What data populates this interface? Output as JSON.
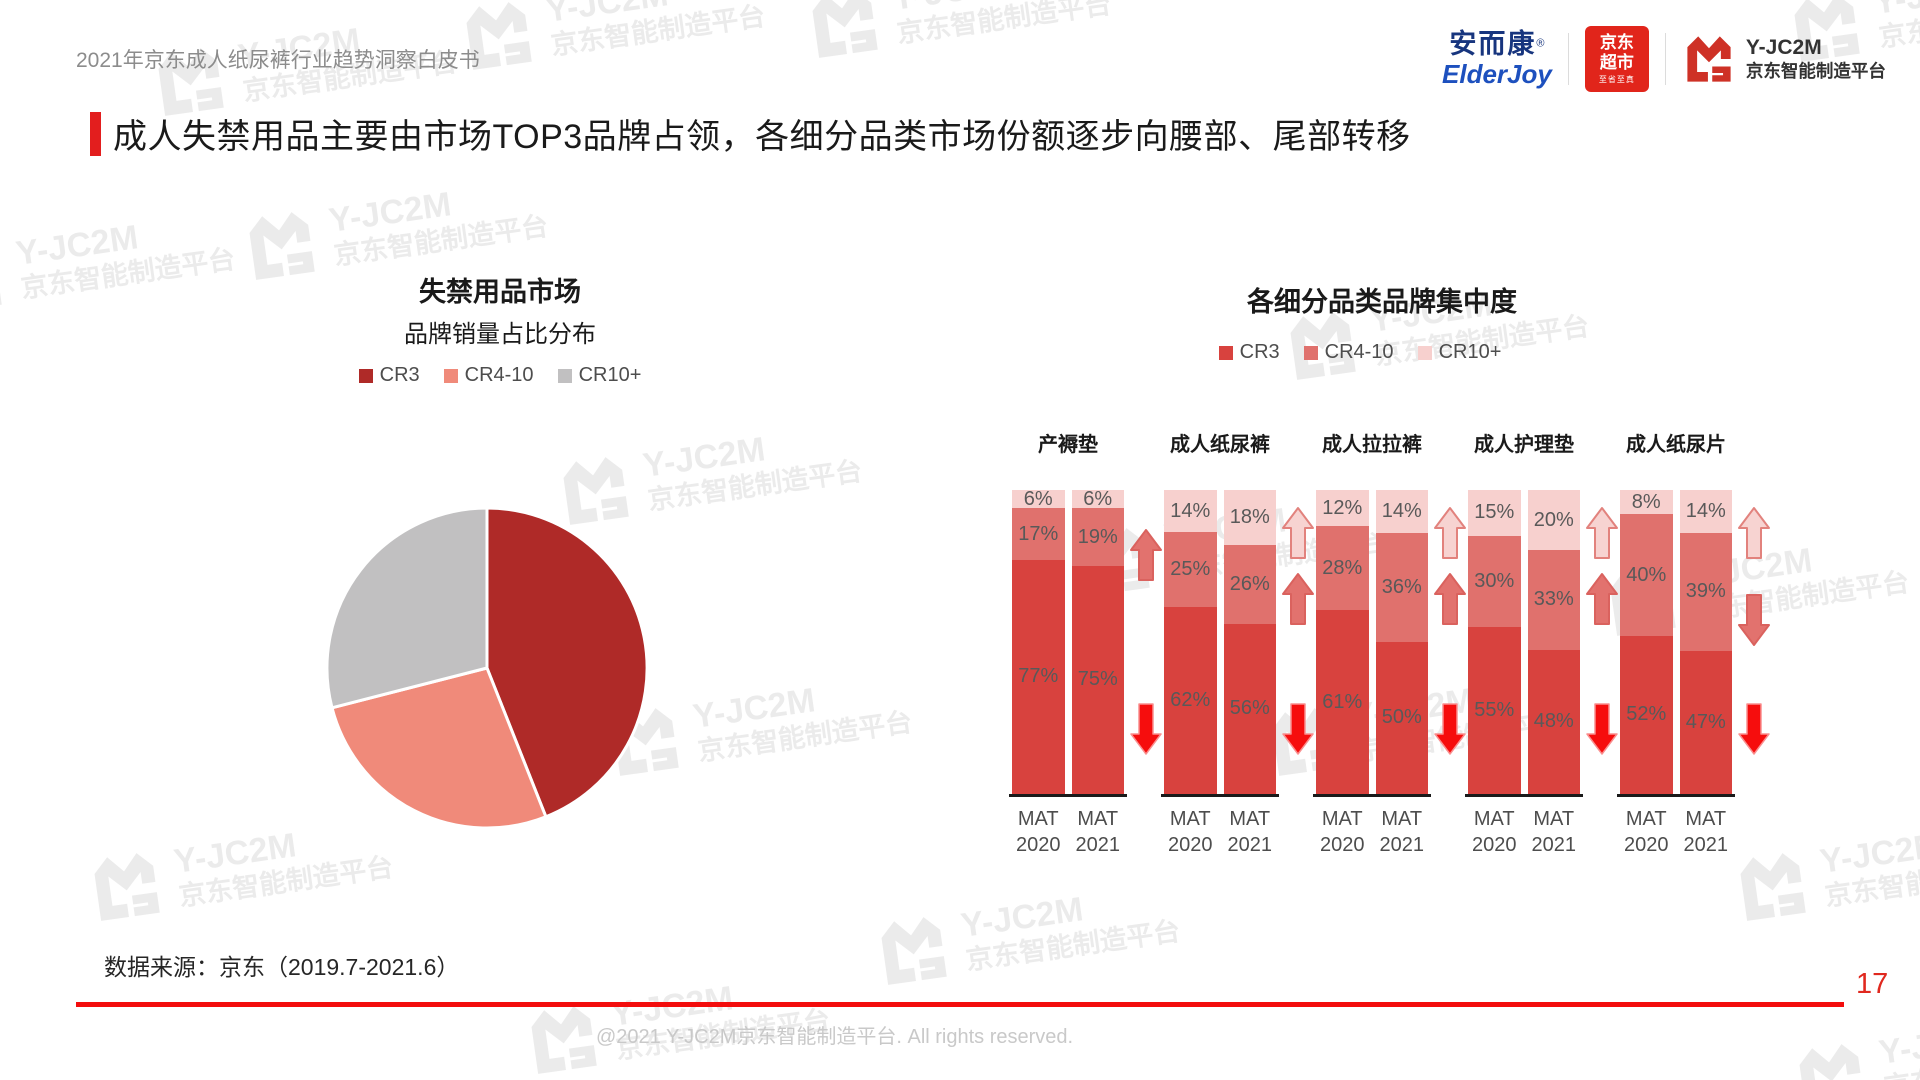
{
  "header": {
    "doc_title": "2021年京东成人纸尿裤行业趋势洞察白皮书",
    "logos": {
      "elderjoy": {
        "cn": "安而康",
        "reg": "®",
        "en": "ElderJoy"
      },
      "jd_supermarket": {
        "line1": "京东",
        "line2": "超市",
        "tagline": "至省至真"
      },
      "yjc2m": {
        "name": "Y-JC2M",
        "subtitle": "京东智能制造平台"
      }
    }
  },
  "page_title": "成人失禁用品主要由市场TOP3品牌占领，各细分品类市场份额逐步向腰部、尾部转移",
  "watermark": {
    "line1": "Y-JC2M",
    "line2": "京东智能制造平台"
  },
  "chart_data": [
    {
      "type": "pie",
      "title": "失禁用品市场",
      "subtitle": "品牌销量占比分布",
      "legend": [
        "CR3",
        "CR4-10",
        "CR10+"
      ],
      "labels": [
        "CR3",
        "CR4-10",
        "CR10+"
      ],
      "values": [
        44,
        27,
        29
      ],
      "values_estimated_from_angles": true,
      "colors": [
        "#AF2A28",
        "#F08A7A",
        "#C1C0C1"
      ],
      "start_angle": "top",
      "direction": "clockwise"
    },
    {
      "type": "bar",
      "subtype": "100%-stacked-column",
      "title": "各细分品类品牌集中度",
      "legend": [
        "CR3",
        "CR4-10",
        "CR10+"
      ],
      "series_colors": {
        "CR3": "#D8423E",
        "CR4-10": "#E0716D",
        "CR10+": "#F7D0CE"
      },
      "label_color": "#595959",
      "categories": [
        "产褥垫",
        "成人纸尿裤",
        "成人拉拉裤",
        "成人护理垫",
        "成人纸尿片"
      ],
      "groups": [
        {
          "category": "产褥垫",
          "bars": [
            {
              "label": [
                "MAT",
                "2020"
              ],
              "values": {
                "CR3": 77,
                "CR4-10": 17,
                "CR10+": 6
              }
            },
            {
              "label": [
                "MAT",
                "2021"
              ],
              "values": {
                "CR3": 75,
                "CR4-10": 19,
                "CR10+": 6
              }
            }
          ],
          "arrows": [
            {
              "series": "CR4-10",
              "dir": "up"
            },
            {
              "series": "CR3",
              "dir": "down"
            }
          ]
        },
        {
          "category": "成人纸尿裤",
          "bars": [
            {
              "label": [
                "MAT",
                "2020"
              ],
              "values": {
                "CR3": 62,
                "CR4-10": 25,
                "CR10+": 14
              }
            },
            {
              "label": [
                "MAT",
                "2021"
              ],
              "values": {
                "CR3": 56,
                "CR4-10": 26,
                "CR10+": 18
              }
            }
          ],
          "arrows": [
            {
              "series": "CR10+",
              "dir": "up"
            },
            {
              "series": "CR4-10",
              "dir": "up"
            },
            {
              "series": "CR3",
              "dir": "down"
            }
          ]
        },
        {
          "category": "成人拉拉裤",
          "bars": [
            {
              "label": [
                "MAT",
                "2020"
              ],
              "values": {
                "CR3": 61,
                "CR4-10": 28,
                "CR10+": 12
              }
            },
            {
              "label": [
                "MAT",
                "2021"
              ],
              "values": {
                "CR3": 50,
                "CR4-10": 36,
                "CR10+": 14
              }
            }
          ],
          "arrows": [
            {
              "series": "CR10+",
              "dir": "up"
            },
            {
              "series": "CR4-10",
              "dir": "up"
            },
            {
              "series": "CR3",
              "dir": "down"
            }
          ]
        },
        {
          "category": "成人护理垫",
          "bars": [
            {
              "label": [
                "MAT",
                "2020"
              ],
              "values": {
                "CR3": 55,
                "CR4-10": 30,
                "CR10+": 15
              }
            },
            {
              "label": [
                "MAT",
                "2021"
              ],
              "values": {
                "CR3": 48,
                "CR4-10": 33,
                "CR10+": 20
              }
            }
          ],
          "arrows": [
            {
              "series": "CR10+",
              "dir": "up"
            },
            {
              "series": "CR4-10",
              "dir": "up"
            },
            {
              "series": "CR3",
              "dir": "down"
            }
          ]
        },
        {
          "category": "成人纸尿片",
          "bars": [
            {
              "label": [
                "MAT",
                "2020"
              ],
              "values": {
                "CR3": 52,
                "CR4-10": 40,
                "CR10+": 8
              }
            },
            {
              "label": [
                "MAT",
                "2021"
              ],
              "values": {
                "CR3": 47,
                "CR4-10": 39,
                "CR10+": 14
              }
            }
          ],
          "arrows": [
            {
              "series": "CR10+",
              "dir": "up"
            },
            {
              "series": "CR4-10",
              "dir": "down"
            },
            {
              "series": "CR3",
              "dir": "down"
            }
          ]
        }
      ]
    }
  ],
  "footer": {
    "source": "数据来源：京东（2019.7-2021.6）",
    "page_number": "17",
    "copyright": "@2021 Y-JC2M京东智能制造平台. All rights reserved.",
    "accent_color": "#F30D0D"
  }
}
